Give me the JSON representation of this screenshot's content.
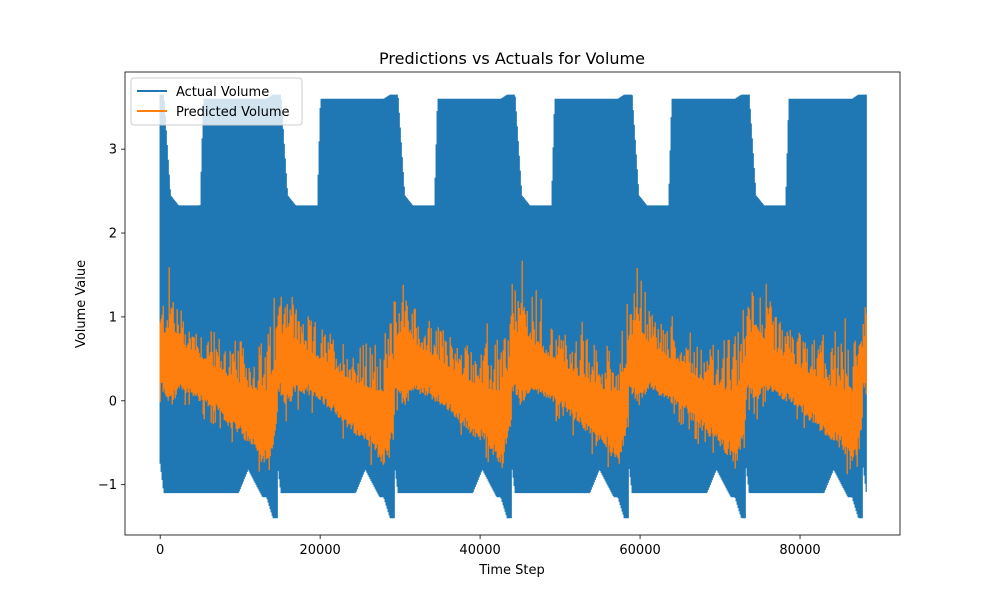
{
  "chart_data": {
    "type": "line",
    "title": "Predictions vs Actuals for Volume",
    "xlabel": "Time Step",
    "ylabel": "Volume Value",
    "xlim": [
      -4400,
      92500
    ],
    "ylim": [
      -1.6,
      3.92
    ],
    "x_ticks": [
      0,
      20000,
      40000,
      60000,
      80000
    ],
    "x_tick_labels": [
      "0",
      "20000",
      "40000",
      "60000",
      "80000"
    ],
    "y_ticks": [
      -1,
      0,
      1,
      2,
      3
    ],
    "y_tick_labels": [
      "−1",
      "0",
      "1",
      "2",
      "3"
    ],
    "grid": false,
    "legend_position": "upper left",
    "period": 14640,
    "n_points": 88300,
    "series": [
      {
        "name": "Actual Volume",
        "color": "#1f77b4",
        "cycle_profile": {
          "x_offset": [
            0,
            450,
            1300,
            2300,
            5000,
            5400,
            8500,
            9800,
            11000,
            12800,
            13300,
            14100,
            14640
          ],
          "high": [
            3.65,
            3.65,
            2.45,
            2.33,
            2.33,
            3.6,
            3.6,
            3.6,
            3.6,
            3.6,
            3.6,
            3.65,
            3.65
          ],
          "low": [
            -0.75,
            -1.1,
            -1.1,
            -1.1,
            -1.1,
            -1.1,
            -1.1,
            -1.1,
            -0.82,
            -1.15,
            -1.15,
            -1.4,
            -1.4
          ]
        }
      },
      {
        "name": "Predicted Volume",
        "color": "#ff7f0e",
        "cycle_profile": {
          "x_offset": [
            0,
            1300,
            2300,
            4000,
            6500,
            9000,
            11500,
            13500,
            14640
          ],
          "high": [
            1.2,
            1.7,
            1.2,
            1.0,
            0.85,
            0.75,
            0.7,
            0.85,
            1.25
          ],
          "low": [
            0.15,
            -0.1,
            0.1,
            0.05,
            -0.1,
            -0.35,
            -0.55,
            -0.8,
            -0.3
          ]
        }
      }
    ]
  }
}
